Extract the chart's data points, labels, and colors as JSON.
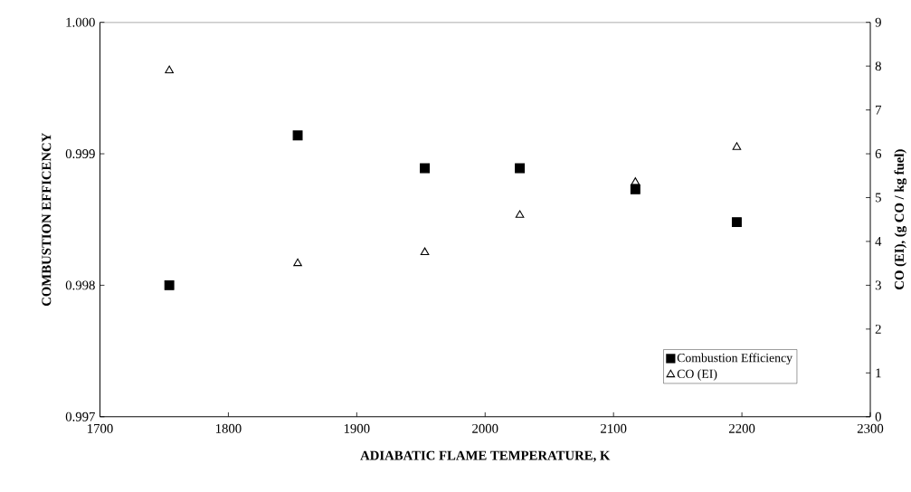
{
  "chart_data": {
    "type": "scatter",
    "xlabel": "ADIABATIC FLAME TEMPERATURE, K",
    "ylabel": "COMBUSTION EFFICENCY",
    "y2label": "CO (EI), (g CO / kg fuel)",
    "x": [
      1754,
      1854,
      1953,
      2027,
      2117,
      2196
    ],
    "series": [
      {
        "name": "Combustion Efficiency",
        "color": "#000000",
        "marker": "square",
        "values": [
          0.998,
          0.99914,
          0.99889,
          0.99889,
          0.99873,
          0.99848
        ]
      },
      {
        "name": "CO (EI)",
        "color": "#000000",
        "marker": "triangle",
        "axis": "y2",
        "values": [
          7.9,
          3.5,
          3.75,
          4.6,
          5.35,
          6.15
        ]
      }
    ],
    "xlim": [
      1700,
      2300
    ],
    "xticks": [
      1700,
      1800,
      1900,
      2000,
      2100,
      2200,
      2300
    ],
    "ylim": [
      0.997,
      1.0
    ],
    "yticks": [
      0.997,
      0.998,
      0.999,
      {
        "value": 1.0,
        "label": "1.000"
      }
    ],
    "y2lim": [
      0,
      9
    ],
    "y2ticks": [
      0,
      1,
      2,
      3,
      4,
      5,
      6,
      7,
      8,
      9
    ],
    "legend": "bottom right",
    "grid": false
  }
}
